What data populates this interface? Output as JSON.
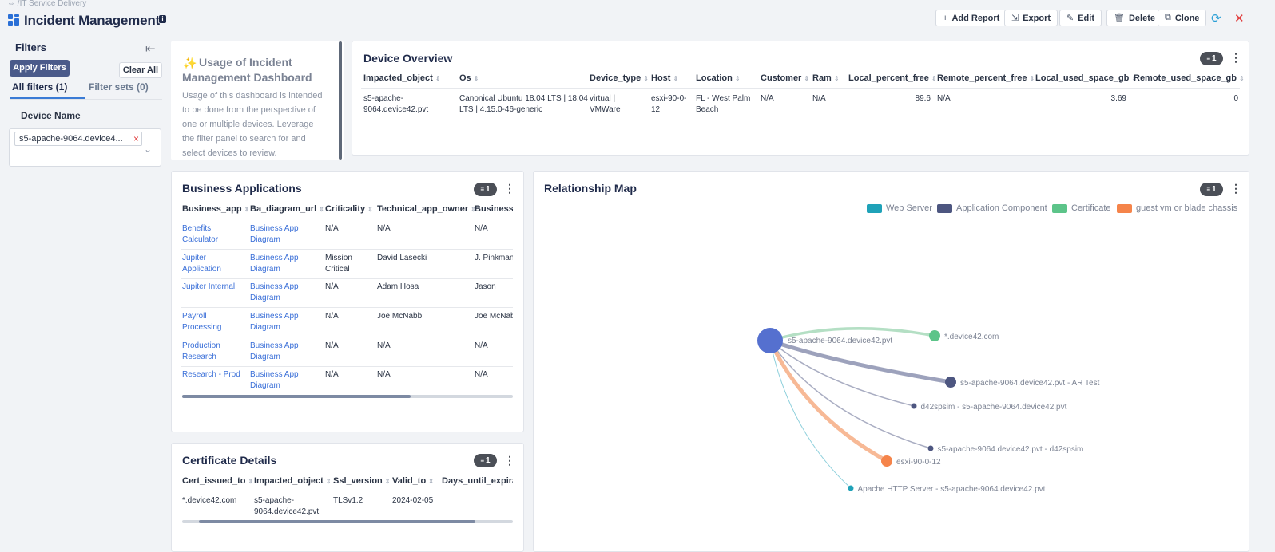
{
  "breadcrumb": "IT Service Delivery",
  "page_title": "Incident Management",
  "toolbar": {
    "add_report": "Add Report",
    "export": "Export",
    "edit": "Edit",
    "delete": "Delete",
    "clone": "Clone"
  },
  "filters": {
    "title": "Filters",
    "apply": "Apply Filters",
    "clear_all": "Clear All",
    "tab_all": "All filters (1)",
    "tab_sets": "Filter sets (0)",
    "device_label": "Device Name",
    "device_chip": "s5-apache-9064.device4..."
  },
  "usage": {
    "title_line1": "Usage of Incident",
    "title_line2": "Management Dashboard",
    "body": "Usage of this dashboard is intended to be done from the perspective of one or multiple devices. Leverage the filter panel to search for and select devices to review."
  },
  "device_overview": {
    "title": "Device Overview",
    "badge": "1",
    "headers": [
      "Impacted_object",
      "Os",
      "Device_type",
      "Host",
      "Location",
      "Customer",
      "Ram",
      "Local_percent_free",
      "Remote_percent_free",
      "Local_used_space_gb",
      "Remote_used_space_gb"
    ],
    "row": [
      "s5-apache-\n9064.device42.pvt",
      "Canonical Ubuntu 18.04 LTS | 18.04\nLTS | 4.15.0-46-generic",
      "virtual |\nVMWare",
      "esxi-90-0-\n12",
      "FL - West Palm\nBeach",
      "N/A",
      "N/A",
      "89.6",
      "N/A",
      "3.69",
      "0"
    ]
  },
  "business_apps": {
    "title": "Business Applications",
    "badge": "1",
    "headers": [
      "Business_app",
      "Ba_diagram_url",
      "Criticality",
      "Technical_app_owner",
      "Business_"
    ],
    "rows": [
      [
        "Benefits\nCalculator",
        "Business App\nDiagram",
        "N/A",
        "N/A",
        "N/A"
      ],
      [
        "Jupiter\nApplication",
        "Business App\nDiagram",
        "Mission\nCritical",
        "David Lasecki",
        "J. Pinkman"
      ],
      [
        "Jupiter Internal",
        "Business App\nDiagram",
        "N/A",
        "Adam Hosa",
        "Jason"
      ],
      [
        "Payroll\nProcessing",
        "Business App\nDiagram",
        "N/A",
        "Joe McNabb",
        "Joe McNab"
      ],
      [
        "Production\nResearch",
        "Business App\nDiagram",
        "N/A",
        "N/A",
        "N/A"
      ],
      [
        "Research - Prod",
        "Business App\nDiagram",
        "N/A",
        "N/A",
        "N/A"
      ]
    ]
  },
  "cert_details": {
    "title": "Certificate Details",
    "badge": "1",
    "headers": [
      "Cert_issued_to",
      "Impacted_object",
      "Ssl_version",
      "Valid_to",
      "Days_until_expirat"
    ],
    "row": [
      "*.device42.com",
      "s5-apache-\n9064.device42.pvt",
      "TLSv1.2",
      "2024-02-05",
      ""
    ]
  },
  "relationship_map": {
    "title": "Relationship Map",
    "badge": "1",
    "legend": [
      {
        "label": "Web Server",
        "color": "#1fa2b8"
      },
      {
        "label": "Application Component",
        "color": "#4d5680"
      },
      {
        "label": "Certificate",
        "color": "#5cc489"
      },
      {
        "label": "guest vm or blade chassis",
        "color": "#f5844a"
      }
    ],
    "center_label": "s5-apache-9064.device42.pvt",
    "nodes": [
      {
        "label": "*.device42.com",
        "type": "Certificate"
      },
      {
        "label": "s5-apache-9064.device42.pvt - AR Test",
        "type": "Application Component"
      },
      {
        "label": "d42spsim - s5-apache-9064.device42.pvt",
        "type": "Application Component"
      },
      {
        "label": "s5-apache-9064.device42.pvt - d42spsim",
        "type": "Application Component"
      },
      {
        "label": "esxi-90-0-12",
        "type": "guest vm or blade chassis"
      },
      {
        "label": "Apache HTTP Server - s5-apache-9064.device42.pvt",
        "type": "Web Server"
      }
    ]
  },
  "colors": {
    "accent": "#3a7bd5",
    "apply_button": "#4a5a8a",
    "close": "#e03a3a",
    "refresh": "#2a9fd6",
    "center_node": "#5570cf"
  }
}
